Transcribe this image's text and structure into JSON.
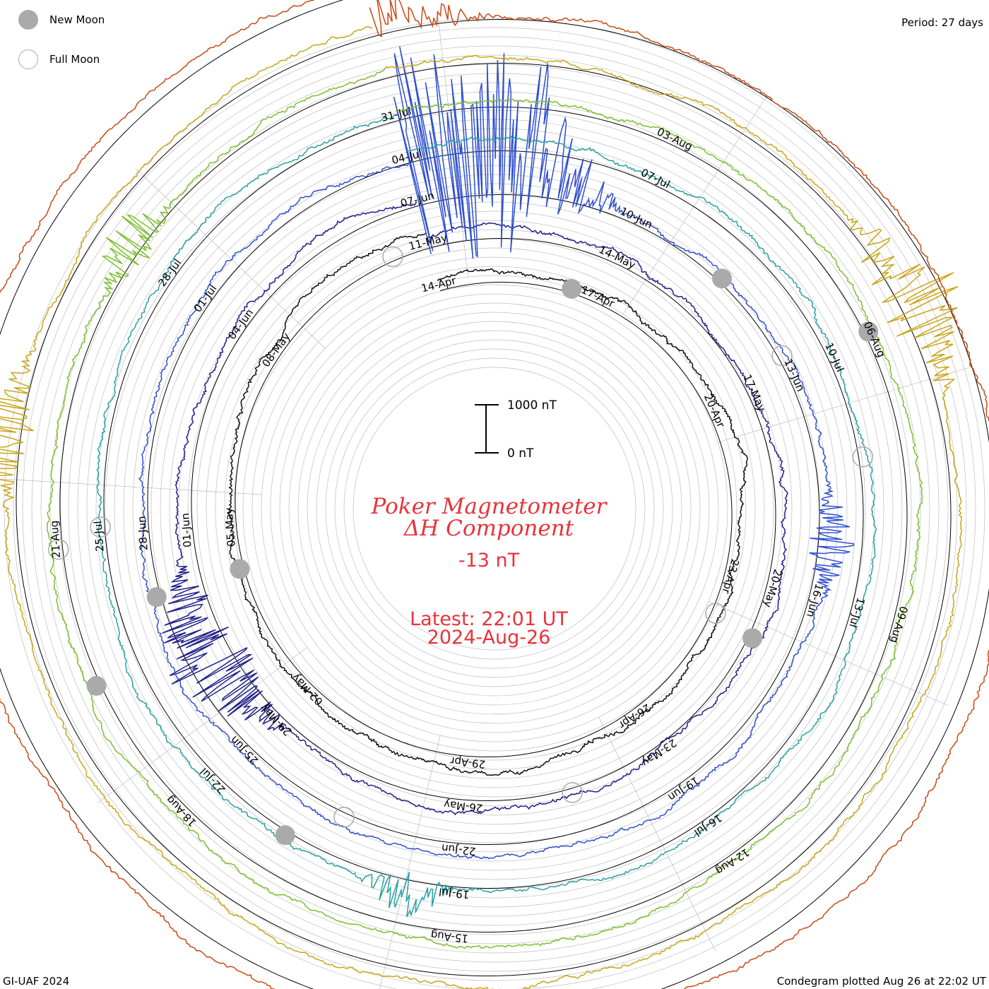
{
  "legend": {
    "new_moon": "New Moon",
    "full_moon": "Full Moon"
  },
  "header": {
    "period": "Period: 27 days"
  },
  "footer": {
    "credit": "GI-UAF 2024",
    "plotted": "Condegram plotted Aug 26 at 22:02 UT"
  },
  "center": {
    "title1": "Poker Magnetometer",
    "title2": "ΔH Component",
    "value": "-13 nT",
    "latest": "Latest: 22:01 UT",
    "date": "2024-Aug-26"
  },
  "scale_bar": {
    "top_label": "1000 nT",
    "bottom_label": "0 nT"
  },
  "colors": {
    "text_red": "#e8333a",
    "ring_grey": "#bdbdbd",
    "moon_new": "#aaaaaa",
    "moon_full": "#aaaaaa"
  },
  "chart_data": {
    "type": "line",
    "title": "Poker Magnetometer ΔH Component",
    "period_days": 27,
    "start_date": "2024-Apr-14",
    "end_date": "2024-Aug-26",
    "scale_nT": [
      0,
      1000
    ],
    "current_value_nT": -13,
    "ring_date_labels": [
      [
        "14-Apr",
        "17-Apr",
        "20-Apr",
        "23-Apr",
        "26-Apr",
        "29-Apr",
        "02-May",
        "05-May",
        "08-May"
      ],
      [
        "11-May",
        "14-May",
        "17-May",
        "20-May",
        "23-May",
        "26-May",
        "29-May",
        "01-Jun",
        "04-Jun"
      ],
      [
        "07-Jun",
        "10-Jun",
        "13-Jun",
        "16-Jun",
        "19-Jun",
        "22-Jun",
        "25-Jun",
        "28-Jun",
        "01-Jul"
      ],
      [
        "04-Jul",
        "07-Jul",
        "10-Jul",
        "13-Jul",
        "16-Jul",
        "19-Jul",
        "22-Jul",
        "25-Jul",
        "28-Jul"
      ],
      [
        "31-Jul",
        "03-Aug",
        "06-Aug",
        "09-Aug",
        "12-Aug",
        "15-Aug",
        "18-Aug",
        "21-Aug"
      ]
    ],
    "series": [
      {
        "color": "#101010",
        "days": [
          0,
          27
        ],
        "disturbances": []
      },
      {
        "color": "#20208a",
        "days": [
          27,
          54
        ],
        "disturbances": [
          [
            19.2,
            1.5,
            1.6
          ]
        ]
      },
      {
        "color": "#2f4fd0",
        "days": [
          54,
          81
        ],
        "disturbances": [
          [
            0.2,
            2.6,
            4.0
          ],
          [
            1.4,
            0.8,
            1.5
          ],
          [
            8.2,
            0.8,
            0.9
          ]
        ]
      },
      {
        "color": "#2aa0a0",
        "days": [
          81,
          108
        ],
        "disturbances": [
          [
            15.5,
            0.6,
            0.8
          ]
        ]
      },
      {
        "color": "#7bbf2c",
        "days": [
          108,
          135
        ],
        "disturbances": [
          [
            24.0,
            0.6,
            0.9
          ]
        ]
      },
      {
        "color": "#c9a418",
        "days": [
          135,
          162
        ],
        "disturbances": [
          [
            5.8,
            1.0,
            1.6
          ],
          [
            22.0,
            0.8,
            1.0
          ]
        ]
      },
      {
        "color": "#c84a14",
        "days": [
          162,
          189
        ],
        "disturbances": [
          [
            0.1,
            1.0,
            0.8
          ]
        ]
      }
    ],
    "moon_phases": {
      "new_moon_days": [
        2.5,
        20.3,
        36.8,
        58.4,
        74.2,
        98.0,
        113.9,
        127.5
      ],
      "full_moon_days": [
        9.7,
        26.4,
        40.4,
        59.7,
        70.5,
        88.2,
        102.1,
        128.9
      ]
    }
  }
}
